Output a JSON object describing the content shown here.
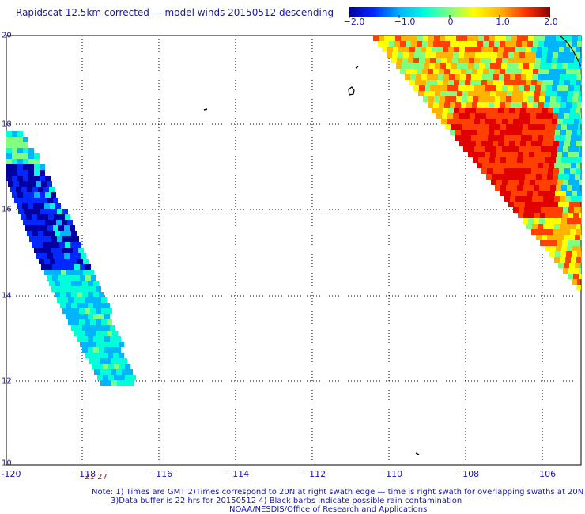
{
  "title": "Rapidscat 12.5km corrected — model winds 20150512 descending",
  "colorbar": {
    "ticks": [
      "−2.0",
      "−1.0",
      "0",
      "1.0",
      "2.0"
    ],
    "range": [
      -2.0,
      2.0
    ],
    "colors": [
      "#0000a0",
      "#0028ff",
      "#00b4ff",
      "#00ffd8",
      "#80ff80",
      "#ffff00",
      "#ffb400",
      "#ff4000",
      "#e00000",
      "#8c0000"
    ]
  },
  "axes": {
    "lat_labels": [
      "20",
      "18",
      "16",
      "14",
      "12",
      "10"
    ],
    "lon_labels": [
      "-120",
      "−118",
      "−116",
      "−114",
      "−112",
      "−110",
      "−108",
      "−106"
    ],
    "lat_range": [
      10,
      20
    ],
    "lon_range": [
      -120,
      -105.2
    ],
    "grid": "dotted"
  },
  "swath_time": "21:27",
  "notes": {
    "line1": "Note: 1) Times are GMT 2)Times correspond to 20N at right swath edge — time is right swath for overlapping swaths at 20N",
    "line2": "3)Data buffer is 22 hrs for 20150512 4) Black barbs indicate possible rain contamination",
    "line3": "NOAA/NESDIS/Office of Research and Applications"
  }
}
